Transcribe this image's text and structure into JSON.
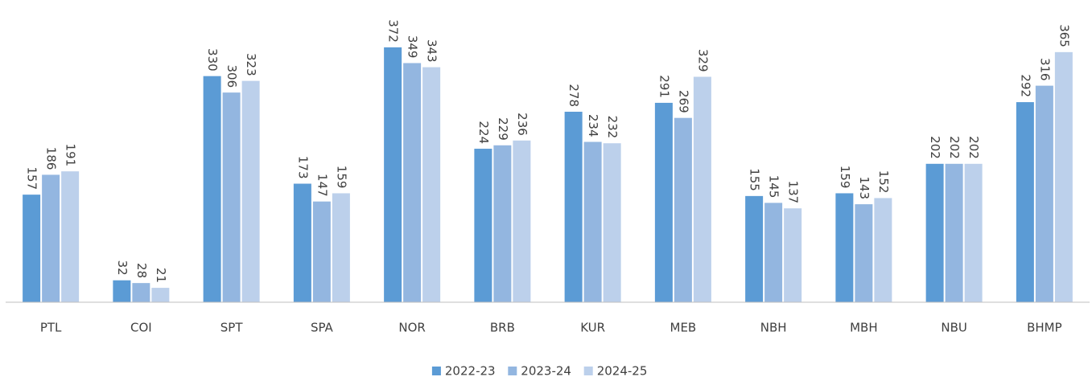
{
  "chart_data": {
    "type": "bar",
    "categories": [
      "PTL",
      "COI",
      "SPT",
      "SPA",
      "NOR",
      "BRB",
      "KUR",
      "MEB",
      "NBH",
      "MBH",
      "NBU",
      "BHMP"
    ],
    "series": [
      {
        "name": "2022-23",
        "color": "#5b9bd5",
        "values": [
          157,
          32,
          330,
          173,
          372,
          224,
          278,
          291,
          155,
          159,
          202,
          292
        ]
      },
      {
        "name": "2023-24",
        "color": "#93b6e0",
        "values": [
          186,
          28,
          306,
          147,
          349,
          229,
          234,
          269,
          145,
          143,
          202,
          316
        ]
      },
      {
        "name": "2024-25",
        "color": "#bcd0eb",
        "values": [
          191,
          21,
          323,
          159,
          343,
          236,
          232,
          329,
          137,
          152,
          202,
          365
        ]
      }
    ],
    "ylim": [
      0,
      400
    ],
    "legend": "bottom"
  }
}
